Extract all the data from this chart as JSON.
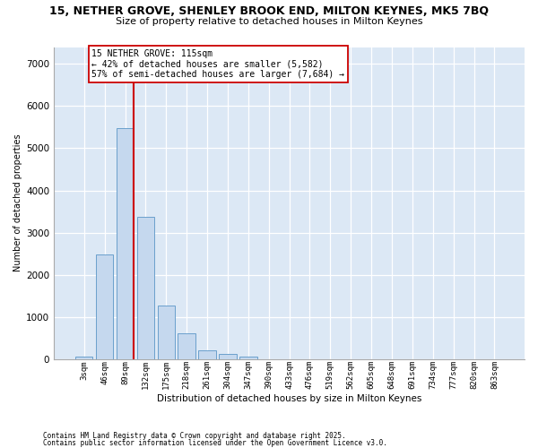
{
  "title_line1": "15, NETHER GROVE, SHENLEY BROOK END, MILTON KEYNES, MK5 7BQ",
  "title_line2": "Size of property relative to detached houses in Milton Keynes",
  "xlabel": "Distribution of detached houses by size in Milton Keynes",
  "ylabel": "Number of detached properties",
  "categories": [
    "3sqm",
    "46sqm",
    "89sqm",
    "132sqm",
    "175sqm",
    "218sqm",
    "261sqm",
    "304sqm",
    "347sqm",
    "390sqm",
    "433sqm",
    "476sqm",
    "519sqm",
    "562sqm",
    "605sqm",
    "648sqm",
    "691sqm",
    "734sqm",
    "777sqm",
    "820sqm",
    "863sqm"
  ],
  "values": [
    55,
    2480,
    5480,
    3380,
    1280,
    620,
    200,
    120,
    60,
    0,
    0,
    0,
    0,
    0,
    0,
    0,
    0,
    0,
    0,
    0,
    0
  ],
  "bar_color": "#c5d8ee",
  "bar_edge_color": "#6aa0cc",
  "vline_color": "#cc0000",
  "vline_x": 2.43,
  "annotation_text": "15 NETHER GROVE: 115sqm\n← 42% of detached houses are smaller (5,582)\n57% of semi-detached houses are larger (7,684) →",
  "ylim_max": 7400,
  "yticks": [
    0,
    1000,
    2000,
    3000,
    4000,
    5000,
    6000,
    7000
  ],
  "bg_color": "#dce8f5",
  "title_fontsize": 9,
  "subtitle_fontsize": 8,
  "footnote1": "Contains HM Land Registry data © Crown copyright and database right 2025.",
  "footnote2": "Contains public sector information licensed under the Open Government Licence v3.0."
}
